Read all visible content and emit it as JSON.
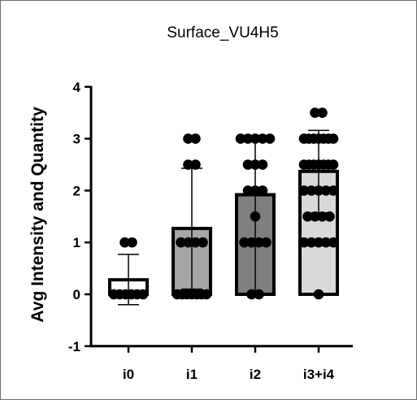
{
  "chart_data": {
    "type": "bar",
    "title": "Surface_VU4H5",
    "xlabel": "",
    "ylabel": "Avg Intensity and Quantity",
    "ylim": [
      -1,
      4
    ],
    "yticks": [
      "-1",
      "0",
      "1",
      "2",
      "3",
      "4"
    ],
    "categories": [
      "i0",
      "i1",
      "i2",
      "i3+i4"
    ],
    "values": [
      0.28,
      1.27,
      1.92,
      2.37
    ],
    "error": [
      [
        -0.2,
        0.77
      ],
      [
        0.1,
        2.43
      ],
      [
        0.0,
        3.0
      ],
      [
        1.57,
        3.16
      ]
    ],
    "bar_colors": [
      "#ffffff",
      "#a6a6a6",
      "#7f7f7f",
      "#d9d9d9"
    ],
    "points": [
      [
        1.0,
        1.0,
        0.0,
        0.0,
        0.0,
        0.0,
        0.0,
        0.0
      ],
      [
        3.0,
        3.0,
        2.5,
        2.5,
        1.0,
        1.0,
        1.0,
        1.0,
        0.0,
        0.0,
        0.0,
        0.0,
        0.0,
        0.0,
        0.0
      ],
      [
        3.0,
        3.0,
        3.0,
        3.0,
        3.0,
        2.5,
        2.5,
        2.5,
        2.0,
        2.0,
        2.0,
        1.5,
        1.0,
        1.0,
        1.0,
        1.0,
        0.0,
        0.0
      ],
      [
        3.5,
        3.5,
        3.0,
        3.0,
        3.0,
        3.0,
        3.0,
        3.0,
        3.0,
        2.5,
        2.5,
        2.5,
        2.5,
        2.5,
        2.5,
        2.5,
        2.0,
        2.0,
        2.0,
        2.0,
        2.0,
        1.5,
        1.5,
        1.5,
        1.5,
        1.0,
        1.0,
        1.0,
        1.0,
        1.0,
        0.0
      ]
    ],
    "grid": false,
    "legend": "none"
  }
}
